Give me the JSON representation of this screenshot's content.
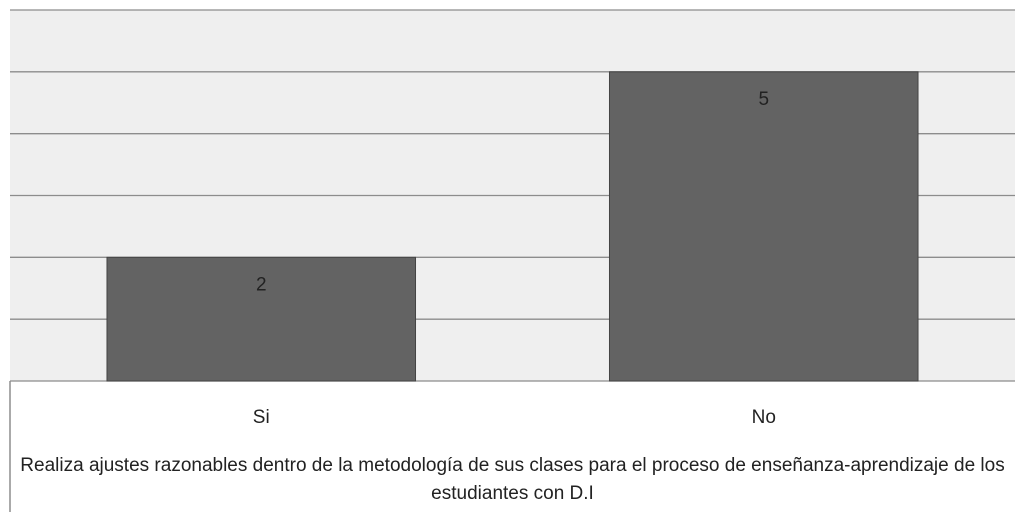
{
  "chart_data": {
    "type": "bar",
    "categories": [
      "Si",
      "No"
    ],
    "values": [
      2,
      5
    ],
    "color": "#636363",
    "ylim": [
      0,
      6
    ],
    "yticks": [
      0,
      1,
      2,
      3,
      4,
      5,
      6
    ],
    "grid": true,
    "xlabel": "Realiza ajustes razonables dentro de la metodología de sus clases para el proceso de enseñanza-aprendizaje de los estudiantes con D.I"
  }
}
